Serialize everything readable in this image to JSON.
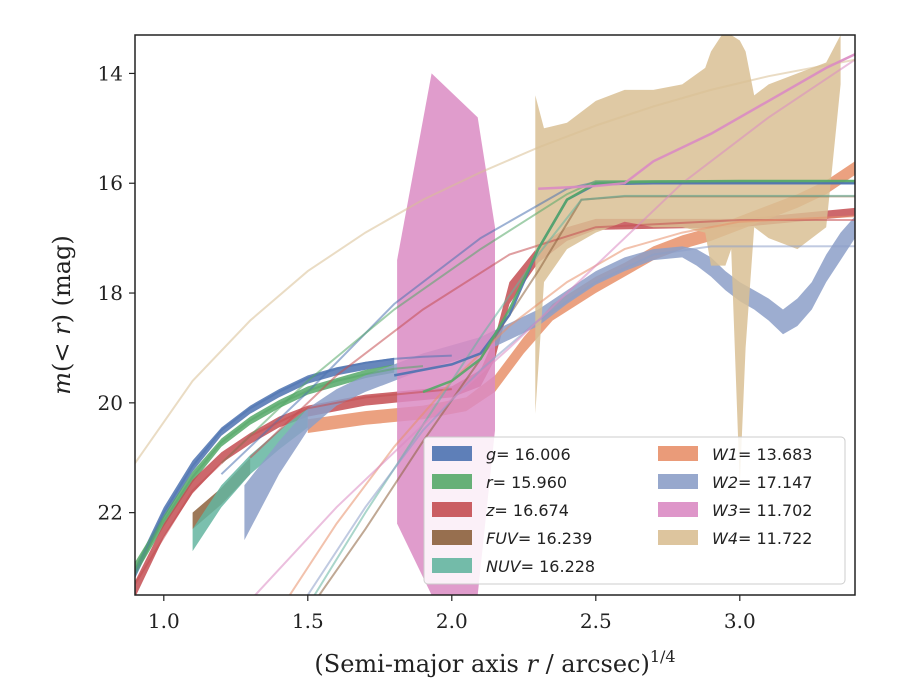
{
  "chart_data": {
    "type": "area",
    "xlabel": "(Semi-major axis r / arcsec)",
    "xlabel_parts": {
      "pre": "(Semi-major axis ",
      "var": "r",
      "post": " / arcsec)",
      "sup": "1/4"
    },
    "ylabel_parts": {
      "pre": "m(",
      "var": "< r",
      "post": ") (mag)"
    },
    "xlim": [
      0.9,
      3.4
    ],
    "ylim": [
      23.5,
      13.3
    ],
    "y_inverted": true,
    "xticks": [
      1.0,
      1.5,
      2.0,
      2.5,
      3.0
    ],
    "xtick_labels": [
      "1.0",
      "1.5",
      "2.0",
      "2.5",
      "3.0"
    ],
    "yticks": [
      14,
      16,
      18,
      20,
      22
    ],
    "ytick_labels": [
      "14",
      "16",
      "18",
      "20",
      "22"
    ],
    "grid": false,
    "legend_position": "lower-right",
    "series": [
      {
        "name": "g",
        "legend_value": "= 16.006",
        "color": "#4c72b0",
        "band": [
          [
            0.9,
            23.0,
            23.2
          ],
          [
            1.0,
            21.9,
            22.1
          ],
          [
            1.1,
            21.05,
            21.25
          ],
          [
            1.2,
            20.45,
            20.6
          ],
          [
            1.3,
            20.05,
            20.2
          ],
          [
            1.4,
            19.75,
            19.9
          ],
          [
            1.5,
            19.5,
            19.65
          ],
          [
            1.6,
            19.35,
            19.5
          ],
          [
            1.7,
            19.25,
            19.4
          ],
          [
            1.8,
            19.18,
            19.32
          ]
        ],
        "fit_line": [
          [
            0.9,
            23.1
          ],
          [
            1.0,
            22.0
          ],
          [
            1.1,
            21.15
          ],
          [
            1.2,
            20.5
          ],
          [
            1.3,
            20.1
          ],
          [
            1.4,
            19.8
          ],
          [
            1.5,
            19.55
          ],
          [
            1.6,
            19.38
          ],
          [
            1.7,
            19.27
          ],
          [
            1.8,
            19.2
          ],
          [
            1.9,
            19.16
          ],
          [
            2.0,
            19.14
          ]
        ],
        "fit_line2": [
          [
            1.2,
            21.3
          ],
          [
            1.5,
            19.8
          ],
          [
            1.8,
            18.2
          ],
          [
            2.1,
            17.0
          ],
          [
            2.4,
            16.1
          ],
          [
            2.5,
            15.98
          ],
          [
            3.4,
            16.0
          ]
        ],
        "curve": [
          [
            1.8,
            19.5
          ],
          [
            1.9,
            19.4
          ],
          [
            2.0,
            19.3
          ],
          [
            2.1,
            19.1
          ],
          [
            2.2,
            18.4
          ],
          [
            2.3,
            17.2
          ],
          [
            2.4,
            16.3
          ],
          [
            2.5,
            16.02
          ],
          [
            2.7,
            16.0
          ],
          [
            3.0,
            16.0
          ],
          [
            3.4,
            16.0
          ]
        ]
      },
      {
        "name": "r",
        "legend_value": "= 15.960",
        "color": "#55a868",
        "band": [
          [
            0.9,
            22.9,
            23.15
          ],
          [
            1.0,
            22.05,
            22.25
          ],
          [
            1.1,
            21.25,
            21.45
          ],
          [
            1.2,
            20.65,
            20.8
          ],
          [
            1.3,
            20.25,
            20.4
          ],
          [
            1.4,
            19.95,
            20.1
          ],
          [
            1.5,
            19.7,
            19.85
          ],
          [
            1.6,
            19.55,
            19.7
          ],
          [
            1.7,
            19.4,
            19.55
          ],
          [
            1.8,
            19.3,
            19.45
          ]
        ],
        "fit_line": [
          [
            0.9,
            23.05
          ],
          [
            1.0,
            22.15
          ],
          [
            1.1,
            21.35
          ],
          [
            1.2,
            20.72
          ],
          [
            1.3,
            20.32
          ],
          [
            1.4,
            20.02
          ],
          [
            1.5,
            19.78
          ],
          [
            1.6,
            19.6
          ],
          [
            1.7,
            19.48
          ],
          [
            1.8,
            19.38
          ],
          [
            1.9,
            19.33
          ]
        ],
        "fit_line2": [
          [
            1.2,
            21.1
          ],
          [
            1.5,
            19.6
          ],
          [
            1.8,
            18.3
          ],
          [
            2.1,
            17.2
          ],
          [
            2.4,
            16.2
          ],
          [
            2.5,
            15.96
          ],
          [
            3.4,
            15.96
          ]
        ],
        "curve": [
          [
            1.9,
            19.8
          ],
          [
            2.0,
            19.6
          ],
          [
            2.1,
            19.2
          ],
          [
            2.2,
            18.3
          ],
          [
            2.3,
            17.2
          ],
          [
            2.4,
            16.3
          ],
          [
            2.5,
            16.0
          ],
          [
            2.7,
            15.97
          ],
          [
            3.0,
            15.96
          ],
          [
            3.4,
            15.96
          ]
        ]
      },
      {
        "name": "z",
        "legend_value": "= 16.674",
        "color": "#c44e52",
        "band": [
          [
            0.9,
            23.25,
            23.55
          ],
          [
            1.0,
            22.2,
            22.45
          ],
          [
            1.1,
            21.4,
            21.65
          ],
          [
            1.2,
            20.9,
            21.1
          ],
          [
            1.3,
            20.55,
            20.75
          ],
          [
            1.4,
            20.25,
            20.45
          ],
          [
            1.5,
            20.05,
            20.25
          ],
          [
            1.6,
            19.95,
            20.15
          ],
          [
            1.7,
            19.85,
            20.05
          ],
          [
            1.8,
            19.8,
            20.0
          ],
          [
            1.9,
            19.75,
            19.95
          ],
          [
            2.0,
            19.7,
            19.9
          ],
          [
            2.1,
            19.4,
            19.7
          ],
          [
            2.15,
            18.8,
            19.2
          ],
          [
            2.2,
            17.8,
            18.2
          ],
          [
            2.3,
            17.15,
            17.45
          ],
          [
            2.4,
            16.8,
            17.05
          ],
          [
            2.5,
            16.65,
            16.85
          ],
          [
            3.0,
            16.65,
            16.8
          ],
          [
            3.4,
            16.45,
            16.6
          ]
        ],
        "fit_line": [
          [
            0.9,
            23.3
          ],
          [
            1.1,
            21.6
          ],
          [
            1.3,
            20.6
          ],
          [
            1.5,
            20.1
          ],
          [
            1.7,
            19.9
          ],
          [
            1.9,
            19.8
          ],
          [
            2.0,
            19.75
          ]
        ],
        "fit_line2": [
          [
            1.3,
            21.0
          ],
          [
            1.6,
            19.5
          ],
          [
            1.9,
            18.3
          ],
          [
            2.2,
            17.3
          ],
          [
            2.5,
            16.8
          ],
          [
            3.0,
            16.67
          ],
          [
            3.4,
            16.67
          ]
        ],
        "curve": []
      },
      {
        "name": "FUV",
        "legend_value": "= 16.239",
        "color": "#8c613c",
        "band": [
          [
            1.1,
            22.0,
            22.3
          ],
          [
            1.2,
            21.55,
            21.85
          ],
          [
            1.3,
            21.0,
            21.3
          ]
        ],
        "fit_line": [
          [
            1.5,
            23.8
          ],
          [
            1.7,
            22.3
          ],
          [
            1.9,
            20.7
          ],
          [
            2.1,
            19.2
          ],
          [
            2.3,
            17.6
          ],
          [
            2.45,
            16.3
          ],
          [
            2.6,
            16.24
          ],
          [
            3.4,
            16.24
          ]
        ],
        "fit_line2": [],
        "curve": []
      },
      {
        "name": "NUV",
        "legend_value": "= 16.228",
        "color": "#64b5a0",
        "band": [
          [
            1.1,
            22.3,
            22.7
          ],
          [
            1.2,
            21.5,
            21.9
          ],
          [
            1.3,
            20.95,
            21.3
          ],
          [
            1.4,
            20.5,
            20.85
          ],
          [
            1.5,
            20.1,
            20.45
          ]
        ],
        "fit_line": [
          [
            1.5,
            23.7
          ],
          [
            1.7,
            22.0
          ],
          [
            1.9,
            20.4
          ],
          [
            2.1,
            18.8
          ],
          [
            2.3,
            17.3
          ],
          [
            2.45,
            16.3
          ],
          [
            2.6,
            16.23
          ],
          [
            3.4,
            16.23
          ]
        ],
        "fit_line2": [],
        "curve": []
      },
      {
        "name": "W1",
        "legend_value": "= 13.683",
        "color": "#e8906a",
        "band": [
          [
            1.5,
            20.3,
            20.55
          ],
          [
            1.7,
            20.15,
            20.4
          ],
          [
            1.9,
            20.05,
            20.3
          ],
          [
            2.05,
            19.9,
            20.15
          ],
          [
            2.15,
            19.5,
            19.8
          ],
          [
            2.25,
            18.8,
            19.1
          ],
          [
            2.35,
            18.2,
            18.5
          ],
          [
            2.5,
            17.7,
            18.0
          ],
          [
            2.6,
            17.45,
            17.7
          ],
          [
            2.7,
            17.15,
            17.4
          ],
          [
            2.8,
            16.95,
            17.2
          ],
          [
            2.9,
            16.8,
            17.05
          ],
          [
            3.0,
            16.6,
            16.85
          ],
          [
            3.1,
            16.4,
            16.65
          ],
          [
            3.2,
            16.2,
            16.45
          ],
          [
            3.3,
            15.95,
            16.2
          ],
          [
            3.4,
            15.6,
            15.85
          ]
        ],
        "fit_line": [
          [
            1.4,
            23.8
          ],
          [
            1.6,
            22.2
          ],
          [
            1.8,
            20.8
          ],
          [
            2.0,
            19.6
          ],
          [
            2.2,
            18.6
          ],
          [
            2.4,
            17.8
          ],
          [
            2.6,
            17.2
          ],
          [
            2.8,
            16.9
          ],
          [
            3.0,
            16.7
          ],
          [
            3.4,
            16.6
          ]
        ],
        "fit_line2": [],
        "curve": []
      },
      {
        "name": "W2",
        "legend_value": "= 17.147",
        "color": "#8c9fc8",
        "band": [
          [
            1.28,
            21.5,
            22.5
          ],
          [
            1.4,
            20.7,
            21.3
          ],
          [
            1.5,
            20.1,
            20.5
          ],
          [
            1.6,
            19.75,
            20.05
          ],
          [
            1.7,
            19.5,
            19.8
          ],
          [
            1.8,
            19.3,
            19.6
          ],
          [
            1.9,
            19.1,
            19.4
          ],
          [
            2.0,
            18.95,
            19.25
          ],
          [
            2.1,
            18.8,
            19.1
          ],
          [
            2.2,
            18.55,
            18.85
          ],
          [
            2.3,
            18.3,
            18.6
          ],
          [
            2.4,
            17.95,
            18.2
          ],
          [
            2.5,
            17.6,
            17.85
          ],
          [
            2.6,
            17.35,
            17.6
          ],
          [
            2.7,
            17.2,
            17.4
          ],
          [
            2.8,
            17.15,
            17.35
          ],
          [
            2.85,
            17.2,
            17.5
          ],
          [
            2.9,
            17.35,
            17.7
          ],
          [
            2.95,
            17.6,
            17.95
          ],
          [
            3.0,
            17.8,
            18.15
          ],
          [
            3.05,
            17.95,
            18.3
          ],
          [
            3.1,
            18.1,
            18.5
          ],
          [
            3.15,
            18.3,
            18.75
          ],
          [
            3.2,
            18.1,
            18.6
          ],
          [
            3.25,
            17.8,
            18.3
          ],
          [
            3.3,
            17.3,
            17.8
          ],
          [
            3.35,
            16.9,
            17.4
          ],
          [
            3.4,
            16.6,
            17.0
          ]
        ],
        "fit_line": [
          [
            1.5,
            23.5
          ],
          [
            1.7,
            21.9
          ],
          [
            1.9,
            20.5
          ],
          [
            2.1,
            19.4
          ],
          [
            2.3,
            18.5
          ],
          [
            2.5,
            17.8
          ],
          [
            2.7,
            17.3
          ],
          [
            2.9,
            17.15
          ],
          [
            3.4,
            17.147
          ]
        ],
        "fit_line2": [],
        "curve": []
      },
      {
        "name": "W3",
        "legend_value": "= 11.702",
        "color": "#da8bc3",
        "band": [
          [
            1.81,
            17.4,
            22.2
          ],
          [
            1.93,
            14.0,
            23.5
          ],
          [
            2.09,
            14.8,
            23.5
          ],
          [
            2.15,
            16.8,
            20.5
          ]
        ],
        "fit_line": [
          [
            1.3,
            23.6
          ],
          [
            1.6,
            21.9
          ],
          [
            1.9,
            20.4
          ],
          [
            2.2,
            19.0
          ],
          [
            2.5,
            17.5
          ],
          [
            2.8,
            16.0
          ],
          [
            3.1,
            14.8
          ],
          [
            3.4,
            13.75
          ]
        ],
        "fit_line2": [],
        "curve": [
          [
            2.3,
            16.1
          ],
          [
            2.5,
            16.05
          ],
          [
            2.6,
            16.0
          ],
          [
            2.7,
            15.6
          ],
          [
            2.9,
            15.1
          ],
          [
            3.1,
            14.5
          ],
          [
            3.3,
            13.9
          ],
          [
            3.4,
            13.65
          ]
        ]
      },
      {
        "name": "W4",
        "legend_value": "= 11.722",
        "color": "#d9bf94",
        "band": [
          [
            2.29,
            14.4,
            20.2
          ],
          [
            2.32,
            15.0,
            17.8
          ],
          [
            2.4,
            14.9,
            17.2
          ],
          [
            2.5,
            14.5,
            16.9
          ],
          [
            2.6,
            14.3,
            16.7
          ],
          [
            2.7,
            14.3,
            16.8
          ],
          [
            2.8,
            14.2,
            16.8
          ],
          [
            2.88,
            13.9,
            16.9
          ],
          [
            2.9,
            13.6,
            17.5
          ],
          [
            2.95,
            13.2,
            17.5
          ],
          [
            2.97,
            13.3,
            17.2
          ],
          [
            3.0,
            13.4,
            21.5
          ],
          [
            3.02,
            13.6,
            19.0
          ],
          [
            3.05,
            14.4,
            16.8
          ],
          [
            3.1,
            14.2,
            17.0
          ],
          [
            3.2,
            14.0,
            17.2
          ],
          [
            3.3,
            13.8,
            16.8
          ],
          [
            3.35,
            13.3,
            14.2
          ]
        ],
        "fit_line": [
          [
            0.9,
            21.1
          ],
          [
            1.1,
            19.6
          ],
          [
            1.3,
            18.5
          ],
          [
            1.5,
            17.6
          ],
          [
            1.7,
            16.9
          ],
          [
            1.9,
            16.3
          ],
          [
            2.1,
            15.8
          ],
          [
            2.3,
            15.35
          ],
          [
            2.5,
            14.95
          ],
          [
            2.7,
            14.6
          ],
          [
            2.9,
            14.3
          ],
          [
            3.1,
            14.05
          ],
          [
            3.4,
            13.75
          ]
        ],
        "fit_line2": [],
        "curve": []
      }
    ]
  }
}
